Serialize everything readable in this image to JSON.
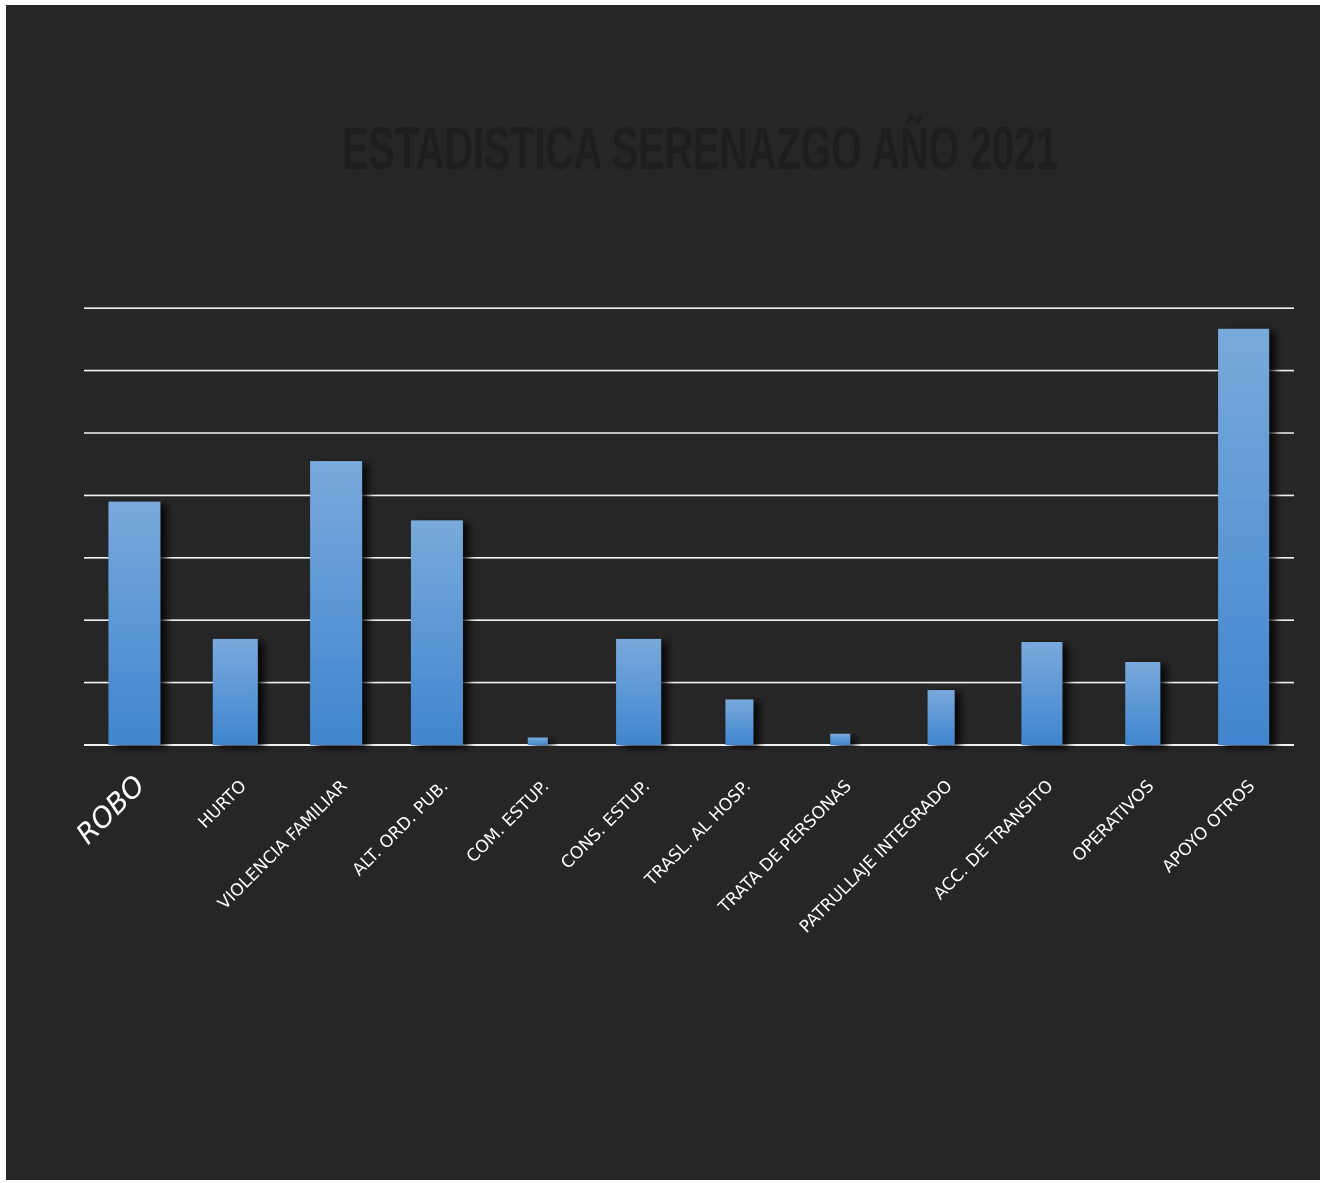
{
  "chart_data": {
    "type": "bar",
    "title": "ESTADISTICA SERENAZGO AÑO 2021",
    "xlabel": "",
    "ylabel": "",
    "ylim": [
      0,
      7
    ],
    "grid": true,
    "legend": "none",
    "categories": [
      "ROBO",
      "HURTO",
      "VIOLENCIA FAMILIAR",
      "ALT. ORD. PUB.",
      "COM. ESTUP.",
      "CONS. ESTUP.",
      "TRASL. AL HOSP.",
      "TRATA DE PERSONAS",
      "PATRULLAJE INTEGRADO",
      "ACC. DE TRANSITO",
      "OPERATIVOS",
      "APOYO OTROS"
    ],
    "values": [
      3.9,
      1.7,
      4.55,
      3.6,
      0.12,
      1.7,
      0.73,
      0.18,
      0.88,
      1.65,
      1.33,
      6.67
    ],
    "colors": {
      "background": "#262626",
      "bar_top": "#7aa9dc",
      "bar_bottom": "#3f86ce",
      "grid": "#f2f2f2",
      "title": "#1e1e1e",
      "labels": "#ffffff"
    }
  }
}
